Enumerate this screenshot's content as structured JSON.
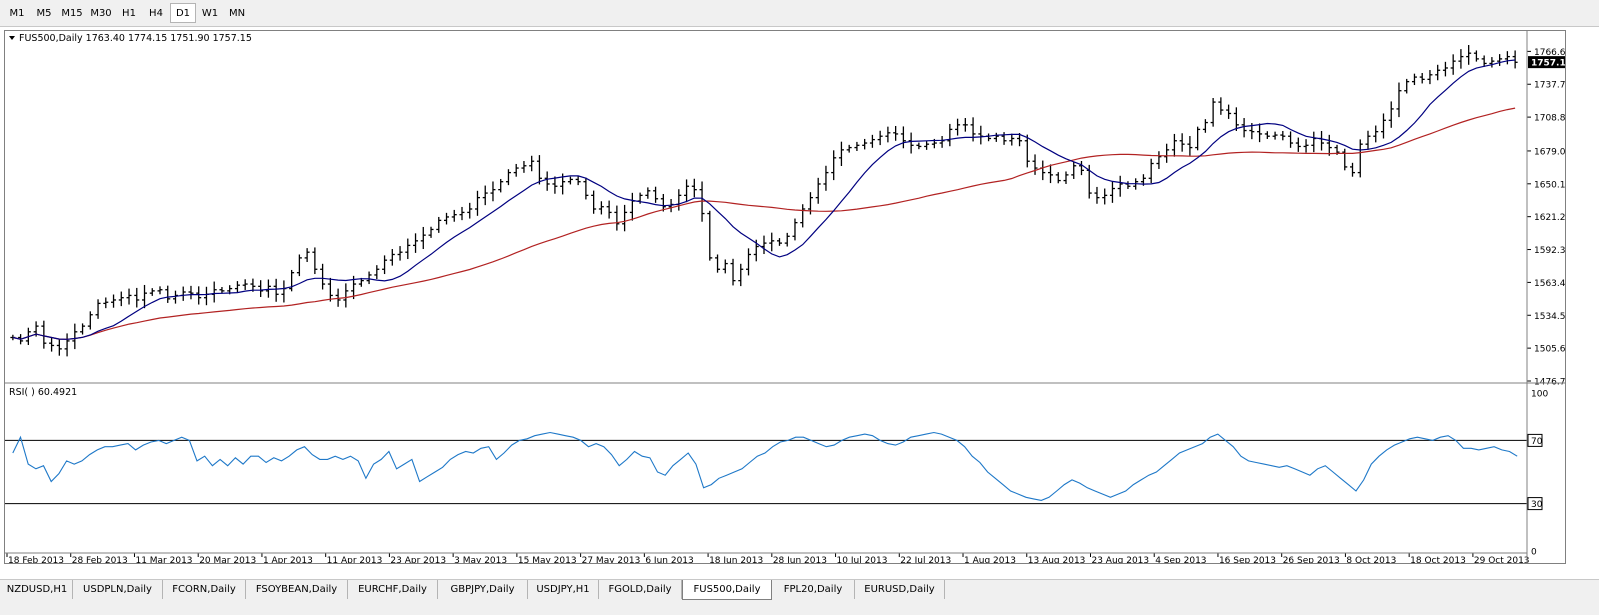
{
  "timeframes": [
    {
      "label": "M1",
      "active": false
    },
    {
      "label": "M5",
      "active": false
    },
    {
      "label": "M15",
      "active": false
    },
    {
      "label": "M30",
      "active": false
    },
    {
      "label": "H1",
      "active": false
    },
    {
      "label": "H4",
      "active": false
    },
    {
      "label": "D1",
      "active": true
    },
    {
      "label": "W1",
      "active": false
    },
    {
      "label": "MN",
      "active": false
    }
  ],
  "tabs": [
    {
      "label": "NZDUSD,H1",
      "active": false
    },
    {
      "label": "USDPLN,Daily",
      "active": false
    },
    {
      "label": "FCORN,Daily",
      "active": false
    },
    {
      "label": "FSOYBEAN,Daily",
      "active": false
    },
    {
      "label": "EURCHF,Daily",
      "active": false
    },
    {
      "label": "GBPJPY,Daily",
      "active": false
    },
    {
      "label": "USDJPY,H1",
      "active": false
    },
    {
      "label": "FGOLD,Daily",
      "active": false
    },
    {
      "label": "FUS500,Daily",
      "active": true
    },
    {
      "label": "FPL20,Daily",
      "active": false
    },
    {
      "label": "EURUSD,Daily",
      "active": false
    }
  ],
  "chart_data": [
    {
      "type": "ohlc",
      "header": "FUS500,Daily  1763.40 1774.15 1751.90 1757.15",
      "current_price": "1757.15",
      "ylim": [
        1476.75,
        1781.0
      ],
      "yticks": [
        "1766.60",
        "1737.70",
        "1708.80",
        "1679.05",
        "1650.15",
        "1621.25",
        "1592.35",
        "1563.45",
        "1534.55",
        "1505.65",
        "1476.75"
      ],
      "xticks": [
        "18 Feb 2013",
        "28 Feb 2013",
        "11 Mar 2013",
        "20 Mar 2013",
        "1 Apr 2013",
        "11 Apr 2013",
        "23 Apr 2013",
        "3 May 2013",
        "15 May 2013",
        "27 May 2013",
        "6 Jun 2013",
        "18 Jun 2013",
        "28 Jun 2013",
        "10 Jul 2013",
        "22 Jul 2013",
        "1 Aug 2013",
        "13 Aug 2013",
        "23 Aug 2013",
        "4 Sep 2013",
        "16 Sep 2013",
        "26 Sep 2013",
        "8 Oct 2013",
        "18 Oct 2013",
        "29 Oct 2013"
      ],
      "bar_color": "#000000",
      "series": [
        {
          "values": [
            1515,
            1512,
            1520,
            1525,
            1510,
            1508,
            1505,
            1512,
            1520,
            1525,
            1535,
            1545,
            1546,
            1548,
            1550,
            1552,
            1548,
            1554,
            1556,
            1557,
            1549,
            1552,
            1555,
            1554,
            1550,
            1553,
            1557,
            1556,
            1558,
            1561,
            1562,
            1560,
            1556,
            1560,
            1553,
            1558,
            1572,
            1585,
            1590,
            1575,
            1562,
            1552,
            1548,
            1556,
            1562,
            1565,
            1570,
            1575,
            1583,
            1588,
            1590,
            1596,
            1600,
            1605,
            1610,
            1618,
            1621,
            1623,
            1625,
            1628,
            1638,
            1642,
            1645,
            1652,
            1660,
            1664,
            1666,
            1670,
            1655,
            1650,
            1648,
            1652,
            1654,
            1652,
            1640,
            1628,
            1630,
            1625,
            1615,
            1625,
            1635,
            1640,
            1644,
            1637,
            1630,
            1632,
            1640,
            1648,
            1645,
            1624,
            1585,
            1575,
            1580,
            1565,
            1575,
            1588,
            1595,
            1598,
            1600,
            1598,
            1604,
            1616,
            1628,
            1638,
            1650,
            1660,
            1673,
            1680,
            1682,
            1684,
            1686,
            1689,
            1692,
            1695,
            1694,
            1688,
            1684,
            1683,
            1685,
            1686,
            1688,
            1698,
            1702,
            1702,
            1694,
            1692,
            1690,
            1692,
            1688,
            1690,
            1688,
            1670,
            1664,
            1660,
            1658,
            1653,
            1658,
            1666,
            1662,
            1642,
            1638,
            1640,
            1646,
            1650,
            1648,
            1652,
            1655,
            1668,
            1674,
            1680,
            1688,
            1685,
            1682,
            1698,
            1704,
            1722,
            1715,
            1712,
            1702,
            1697,
            1696,
            1694,
            1692,
            1693,
            1692,
            1686,
            1683,
            1684,
            1690,
            1686,
            1682,
            1678,
            1665,
            1660,
            1685,
            1692,
            1696,
            1706,
            1716,
            1732,
            1740,
            1744,
            1742,
            1746,
            1750,
            1752,
            1758,
            1762,
            1765,
            1760,
            1756,
            1758,
            1760,
            1762,
            1757
          ],
          "name": "close"
        },
        {
          "name": "sma_fast",
          "color": "#000080"
        },
        {
          "name": "sma_slow",
          "color": "#b22222"
        }
      ]
    },
    {
      "type": "line",
      "header": "RSI(   ) 60.4921",
      "ylim": [
        0,
        100
      ],
      "yticks": [
        "100",
        "70",
        "30",
        "0"
      ],
      "levels": [
        70,
        30
      ],
      "line_color": "#1e78c8",
      "series": [
        {
          "values": [
            62,
            72,
            55,
            52,
            54,
            44,
            49,
            57,
            55,
            57,
            61,
            64,
            66,
            66,
            67,
            68,
            64,
            67,
            69,
            70,
            68,
            70,
            72,
            70,
            57,
            60,
            54,
            58,
            54,
            59,
            55,
            60,
            60,
            56,
            59,
            57,
            60,
            64,
            66,
            61,
            58,
            58,
            60,
            58,
            60,
            57,
            46,
            55,
            58,
            63,
            52,
            55,
            58,
            44,
            47,
            50,
            53,
            58,
            61,
            63,
            62,
            65,
            66,
            58,
            62,
            67,
            70,
            71,
            73,
            74,
            75,
            74,
            73,
            72,
            70,
            66,
            68,
            66,
            61,
            54,
            58,
            63,
            60,
            59,
            50,
            48,
            54,
            58,
            62,
            55,
            40,
            42,
            46,
            48,
            50,
            52,
            56,
            60,
            62,
            66,
            69,
            70,
            72,
            72,
            70,
            68,
            66,
            67,
            70,
            72,
            73,
            74,
            73,
            70,
            68,
            67,
            69,
            72,
            73,
            74,
            75,
            74,
            72,
            70,
            66,
            60,
            56,
            50,
            46,
            42,
            38,
            36,
            34,
            33,
            32,
            34,
            38,
            42,
            45,
            43,
            40,
            38,
            36,
            34,
            36,
            38,
            42,
            45,
            48,
            50,
            54,
            58,
            62,
            64,
            66,
            68,
            72,
            74,
            70,
            66,
            60,
            57,
            56,
            55,
            54,
            53,
            54,
            52,
            50,
            48,
            52,
            54,
            50,
            46,
            42,
            38,
            45,
            55,
            60,
            64,
            67,
            69,
            71,
            72,
            71,
            70,
            72,
            73,
            70,
            65,
            65,
            64,
            65,
            66,
            64,
            63,
            60
          ],
          "name": "rsi"
        }
      ]
    }
  ]
}
